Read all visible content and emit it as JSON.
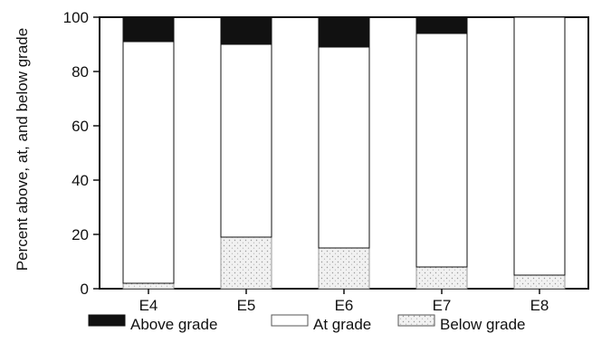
{
  "chart_data": {
    "type": "bar",
    "stacked": true,
    "categories": [
      "E4",
      "E5",
      "E6",
      "E7",
      "E8"
    ],
    "series": [
      {
        "name": "Below grade",
        "values": [
          2,
          19,
          15,
          8,
          5
        ]
      },
      {
        "name": "At grade",
        "values": [
          89,
          71,
          74,
          86,
          95
        ]
      },
      {
        "name": "Above grade",
        "values": [
          9,
          10,
          11,
          6,
          0
        ]
      }
    ],
    "ylabel": "Percent above, at, and below grade",
    "xlabel": "",
    "ylim": [
      0,
      100
    ],
    "yticks": [
      "0",
      "20",
      "40",
      "60",
      "80",
      "100"
    ],
    "grid": false,
    "legend": {
      "position": "bottom",
      "order": [
        "Above grade",
        "At grade",
        "Below grade"
      ]
    },
    "colors": {
      "Above grade": "#111111",
      "At grade": "#ffffff",
      "Below grade": "#ececec"
    }
  }
}
